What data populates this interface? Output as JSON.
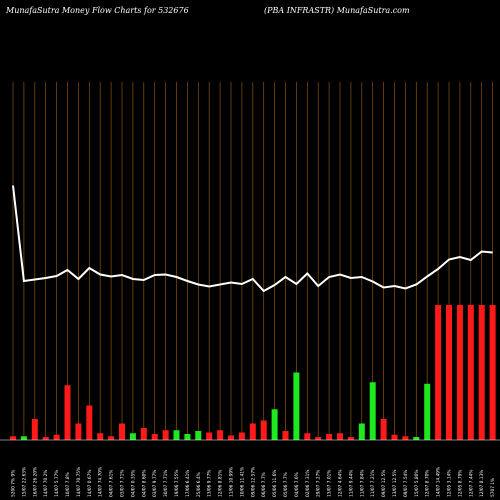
{
  "header": {
    "left": "MunafaSutra  Money Flow  Charts for 532676",
    "right": "(PBA INFRASTR) MunafaSutra.com"
  },
  "chart_data": {
    "type": "bar",
    "title": "MunafaSutra  Money Flow  Charts for 532676",
    "subtitle": "(PBA INFRASTR) MunafaSutra.com",
    "categories": [
      "5200 7% 9%",
      "15/07 22.63%",
      "16/07 26.20%",
      "14/07 70.2%",
      "14/07 5.77%",
      "10/07 7.8%",
      "14/07 70.75%",
      "14/07 0.67%",
      "14/07 74.70%",
      "04/07 7.61%",
      "03/07 7.71%",
      "04/07 0.35%",
      "04/07 8.60%",
      "03/07 9.77%",
      "30/07 7.71%",
      "19/06 7.55%",
      "17/06 6.41%",
      "25/06 6.4%",
      "13/06 9.77%",
      "12/06 8.81%",
      "11/06 10.99%",
      "10/06 11.41%",
      "09/06 12.57%",
      "06/06 7.7%",
      "05/06 11.6%",
      "05/06 7.7%",
      "04/06 7.6%",
      "02/06 7.31%",
      "29/07 7.27%",
      "13/07 7.01%",
      "12/07 4.64%",
      "11/07 9.44%",
      "11/07 7.84%",
      "11/07 7.21%",
      "09/07 12.5%",
      "13/07 12.5%",
      "09/07 7.54%",
      "15/07 5.80%",
      "12/07 8.70%",
      "14/07 14.49%",
      "12/05 3.14%",
      "12/05 8.79%",
      "12/07 7.44%",
      "12/07 8.13%",
      "5707 1%"
    ],
    "money_flow": [
      5,
      5,
      28,
      4,
      7,
      73,
      22,
      46,
      9,
      5,
      22,
      9,
      16,
      8,
      13,
      13,
      8,
      12,
      10,
      13,
      6,
      10,
      22,
      26,
      41,
      12,
      90,
      9,
      4,
      8,
      9,
      4,
      22,
      77,
      28,
      7,
      5,
      4,
      75,
      180,
      180,
      180,
      180,
      180,
      180
    ],
    "bar_colors": [
      "red",
      "green",
      "red",
      "red",
      "red",
      "red",
      "red",
      "red",
      "red",
      "red",
      "red",
      "green",
      "red",
      "red",
      "red",
      "green",
      "green",
      "green",
      "red",
      "red",
      "red",
      "red",
      "red",
      "red",
      "green",
      "red",
      "green",
      "red",
      "red",
      "red",
      "red",
      "red",
      "green",
      "green",
      "red",
      "red",
      "red",
      "green",
      "green",
      "red",
      "red",
      "red",
      "red",
      "red",
      "red"
    ],
    "price_line": [
      51,
      242,
      239,
      236,
      232,
      220,
      238,
      216,
      229,
      233,
      230,
      238,
      240,
      230,
      229,
      234,
      242,
      249,
      253,
      249,
      245,
      248,
      238,
      262,
      250,
      234,
      248,
      227,
      252,
      234,
      229,
      236,
      234,
      243,
      255,
      252,
      257,
      249,
      233,
      218,
      199,
      194,
      200,
      183,
      185
    ],
    "colors": {
      "up": "#1ee81e",
      "down": "#ff1a1a",
      "price": "#ffffff",
      "grid": "#8a5410"
    }
  }
}
